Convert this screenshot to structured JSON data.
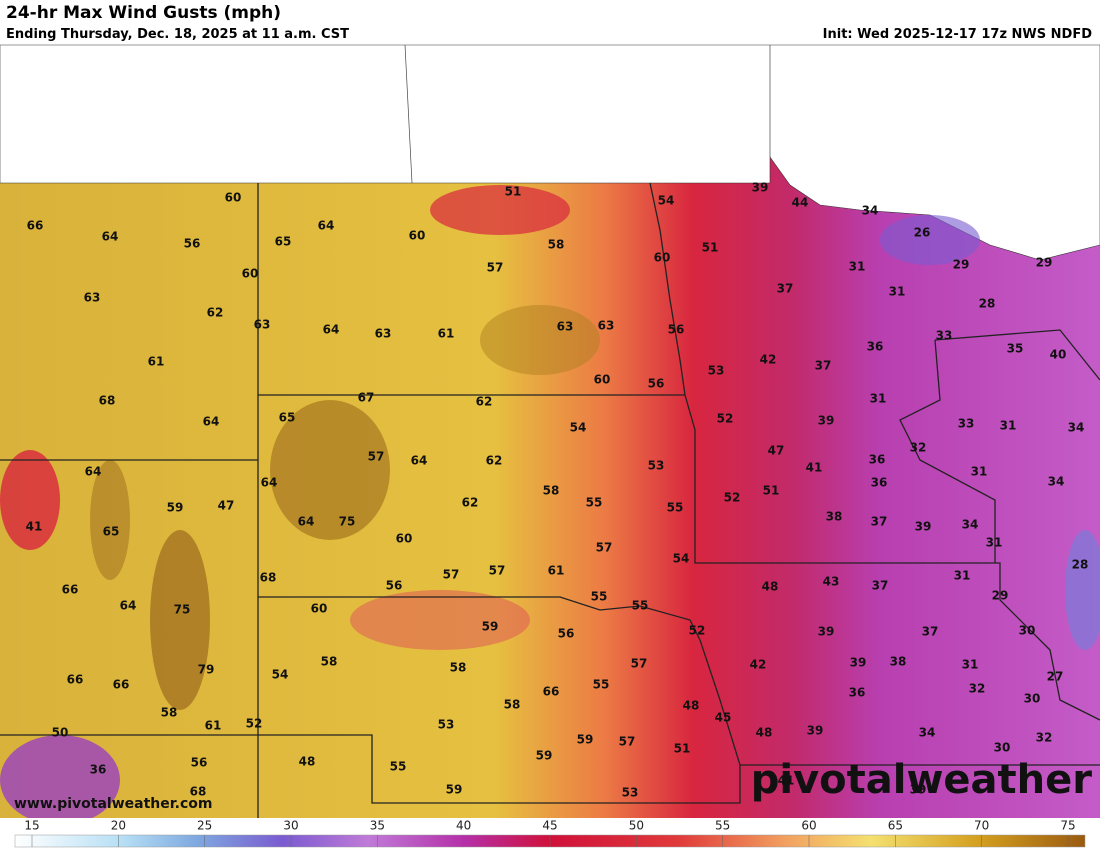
{
  "header": {
    "title": "24-hr Max Wind Gusts (mph)",
    "subtitle": "Ending Thursday, Dec. 18, 2025 at 11 a.m. CST",
    "init": "Init: Wed 2025-12-17 17z NWS NDFD"
  },
  "map": {
    "labels": [
      66,
      64,
      60,
      56,
      60,
      63,
      62,
      63,
      61,
      68,
      64,
      65,
      64,
      60,
      51,
      58,
      57,
      54,
      39,
      44,
      34,
      26,
      60,
      51,
      64,
      63,
      61,
      63,
      63,
      56,
      37,
      31,
      29,
      29,
      31,
      28,
      33,
      35,
      40,
      36,
      42,
      37,
      53,
      60,
      56,
      67,
      62,
      65,
      52,
      39,
      31,
      33,
      31,
      34,
      54,
      32,
      47,
      36,
      41,
      53,
      57,
      64,
      62,
      64,
      36,
      31,
      34,
      41,
      65,
      59,
      47,
      64,
      58,
      55,
      55,
      62,
      52,
      51,
      38,
      37,
      39,
      34,
      31,
      64,
      75,
      60,
      57,
      54,
      28,
      66,
      64,
      75,
      68,
      56,
      57,
      57,
      61,
      48,
      43,
      37,
      31,
      29,
      60,
      55,
      55,
      52,
      59,
      56,
      39,
      37,
      30,
      58,
      54,
      58,
      57,
      42,
      39,
      38,
      31,
      27,
      66,
      66,
      79,
      55,
      66,
      58,
      36,
      32,
      30,
      58,
      61,
      52,
      48,
      45,
      53,
      50,
      39,
      48,
      34,
      32,
      59,
      57,
      51,
      59,
      30,
      36,
      56,
      48,
      55,
      41,
      59,
      53,
      68,
      39
    ],
    "url": "www.pivotalweather.com",
    "watermark": "pivotalweather"
  },
  "colorbar": {
    "ticks": [
      15,
      20,
      25,
      30,
      35,
      40,
      45,
      50,
      55,
      60,
      65,
      70,
      75
    ]
  }
}
